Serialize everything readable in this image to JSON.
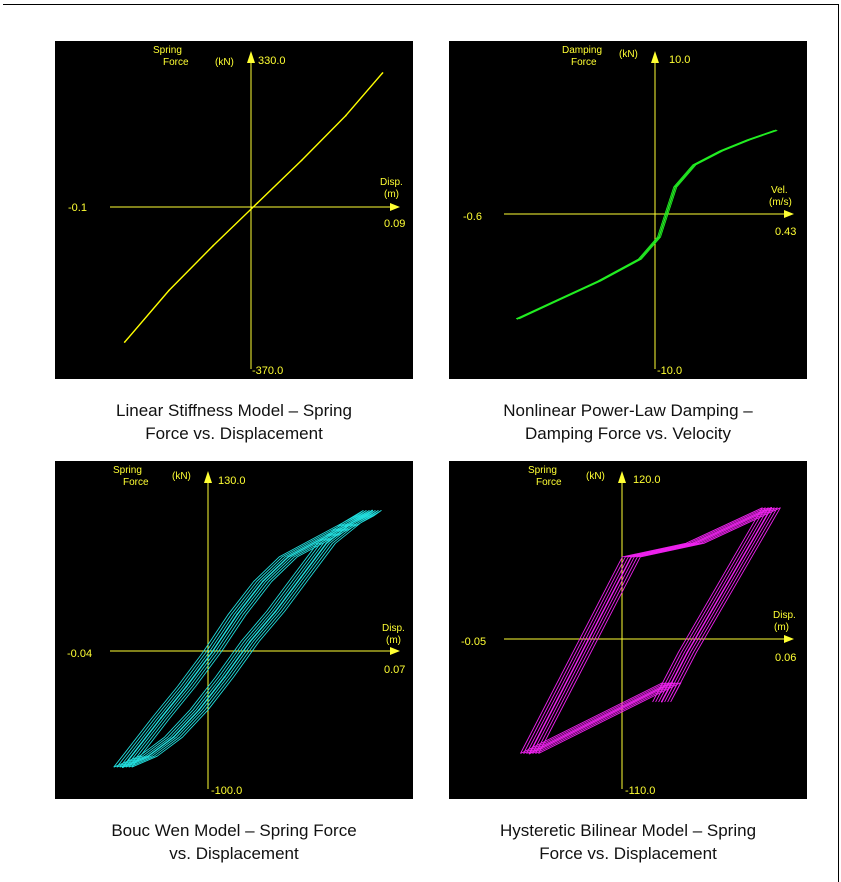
{
  "charts": [
    {
      "caption_lines": [
        "Linear Stiffness Model – Spring",
        "Force vs. Displacement"
      ],
      "y_label_lines": [
        "Spring",
        "Force"
      ],
      "y_unit": "(kN)",
      "y_max_label": "330.0",
      "y_min_label": "-370.0",
      "x_label_lines": [
        "Disp.",
        "(m)"
      ],
      "x_min_label": "-0.1",
      "x_max_label": "0.09",
      "color": "#ffff00"
    },
    {
      "caption_lines": [
        "Nonlinear Power-Law Damping –",
        "Damping Force vs. Velocity"
      ],
      "y_label_lines": [
        "Damping",
        "Force"
      ],
      "y_unit": "(kN)",
      "y_max_label": "10.0",
      "y_min_label": "-10.0",
      "x_label_lines": [
        "Vel.",
        "(m/s)"
      ],
      "x_min_label": "-0.6",
      "x_max_label": "0.43",
      "color": "#22ee22"
    },
    {
      "caption_lines": [
        "Bouc Wen Model – Spring Force",
        "vs. Displacement"
      ],
      "y_label_lines": [
        "Spring",
        "Force"
      ],
      "y_unit": "(kN)",
      "y_max_label": "130.0",
      "y_min_label": "-100.0",
      "x_label_lines": [
        "Disp.",
        "(m)"
      ],
      "x_min_label": "-0.04",
      "x_max_label": "0.07",
      "color": "#22dddd"
    },
    {
      "caption_lines": [
        "Hysteretic Bilinear Model – Spring",
        "Force vs. Displacement"
      ],
      "y_label_lines": [
        "Spring",
        "Force"
      ],
      "y_unit": "(kN)",
      "y_max_label": "120.0",
      "y_min_label": "-110.0",
      "x_label_lines": [
        "Disp.",
        "(m)"
      ],
      "x_min_label": "-0.05",
      "x_max_label": "0.06",
      "color": "#ee22ee"
    }
  ],
  "chart_data": [
    {
      "type": "line",
      "title": "Linear Stiffness Model – Spring Force vs. Displacement",
      "xlabel": "Disp. (m)",
      "ylabel": "Spring Force (kN)",
      "xlim": [
        -0.1,
        0.09
      ],
      "ylim": [
        -370.0,
        330.0
      ],
      "series": [
        {
          "values": [
            [
              -0.09,
              -310
            ],
            [
              -0.06,
              -195
            ],
            [
              -0.03,
              -95
            ],
            [
              0.0,
              0
            ],
            [
              0.03,
              95
            ],
            [
              0.06,
              195
            ],
            [
              0.085,
              290
            ]
          ]
        }
      ]
    },
    {
      "type": "line",
      "title": "Nonlinear Power-Law Damping – Damping Force vs. Velocity",
      "xlabel": "Vel. (m/s)",
      "ylabel": "Damping Force (kN)",
      "xlim": [
        -0.6,
        0.43
      ],
      "ylim": [
        -10.0,
        10.0
      ],
      "series": [
        {
          "values": [
            [
              -0.55,
              -6.8
            ],
            [
              -0.4,
              -5.6
            ],
            [
              -0.25,
              -4.4
            ],
            [
              -0.1,
              -3.0
            ],
            [
              -0.03,
              -1.6
            ],
            [
              0.0,
              0
            ],
            [
              0.03,
              1.6
            ],
            [
              0.1,
              3.0
            ],
            [
              0.2,
              3.9
            ],
            [
              0.3,
              4.6
            ],
            [
              0.4,
              5.2
            ]
          ]
        }
      ]
    },
    {
      "type": "line",
      "title": "Bouc Wen Model – Spring Force vs. Displacement",
      "xlabel": "Disp. (m)",
      "ylabel": "Spring Force (kN)",
      "xlim": [
        -0.04,
        0.07
      ],
      "ylim": [
        -100.0,
        130.0
      ],
      "series": [
        {
          "values": [
            [
              -0.035,
              -84
            ],
            [
              -0.03,
              -72
            ],
            [
              -0.02,
              -48
            ],
            [
              -0.01,
              -25
            ],
            [
              0.0,
              0
            ],
            [
              0.01,
              28
            ],
            [
              0.02,
              52
            ],
            [
              0.03,
              70
            ],
            [
              0.045,
              85
            ],
            [
              0.06,
              100
            ],
            [
              0.063,
              104
            ],
            [
              0.055,
              95
            ],
            [
              0.045,
              80
            ],
            [
              0.035,
              55
            ],
            [
              0.025,
              30
            ],
            [
              0.015,
              8
            ],
            [
              0.005,
              -18
            ],
            [
              -0.005,
              -42
            ],
            [
              -0.015,
              -62
            ],
            [
              -0.025,
              -76
            ],
            [
              -0.035,
              -84
            ]
          ]
        }
      ]
    },
    {
      "type": "line",
      "title": "Hysteretic Bilinear Model – Spring Force vs. Displacement",
      "xlabel": "Disp. (m)",
      "ylabel": "Spring Force (kN)",
      "xlim": [
        -0.05,
        0.06
      ],
      "ylim": [
        -110.0,
        120.0
      ],
      "series": [
        {
          "values": [
            [
              -0.04,
              -84
            ],
            [
              0.0,
              60
            ],
            [
              0.025,
              70
            ],
            [
              0.055,
              96
            ],
            [
              0.022,
              -10
            ],
            [
              0.012,
              -46
            ],
            [
              0.016,
              -32
            ],
            [
              -0.04,
              -84
            ]
          ]
        }
      ]
    }
  ]
}
